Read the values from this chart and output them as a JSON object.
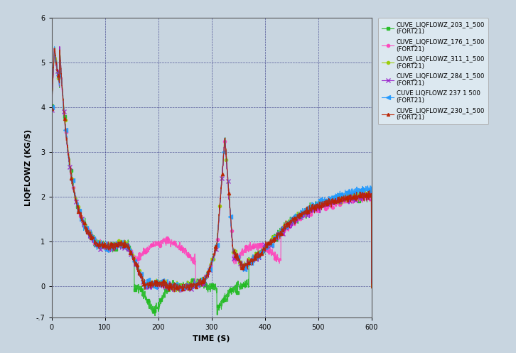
{
  "title": "",
  "xlabel": "TIME (S)",
  "ylabel": "LIQFLOWZ (KG/S)",
  "xlim": [
    0,
    600
  ],
  "ylim": [
    -0.7,
    6.0
  ],
  "xticks": [
    0,
    100,
    200,
    300,
    400,
    500,
    600
  ],
  "yticks": [
    -0.7,
    0,
    1,
    2,
    3,
    4,
    5,
    6
  ],
  "yticklabels": [
    "-.7",
    "0",
    "1",
    "2",
    "3",
    "4",
    "5",
    "6"
  ],
  "background_color": "#c8d5e0",
  "plot_bg_color": "#c8d5e0",
  "legend_bg_color": "#dce8f0",
  "grid_color": "#000066",
  "legend_entries": [
    "CUVE_LIQFLOWZ_203_1_500\n(FORT21)",
    "CUVE_LIQFLOWZ_176_1_500\n(FORT21)",
    "CUVE_LIQFLOWZ_311_1_500\n(FORT21)",
    "CUVE_LIQFLOWZ_284_1_500\n(FORT21)",
    "CUVE LIQFLOWZ 237 1 500\n(FORT21)",
    "CUVE_LIQFLOWZ_230_1_500\n(FORT21)"
  ],
  "line_colors": [
    "#22bb22",
    "#ff44bb",
    "#99cc00",
    "#9922cc",
    "#2299ff",
    "#bb2200"
  ],
  "line_markers": [
    "s",
    "o",
    "o",
    "x",
    "<",
    "^"
  ]
}
